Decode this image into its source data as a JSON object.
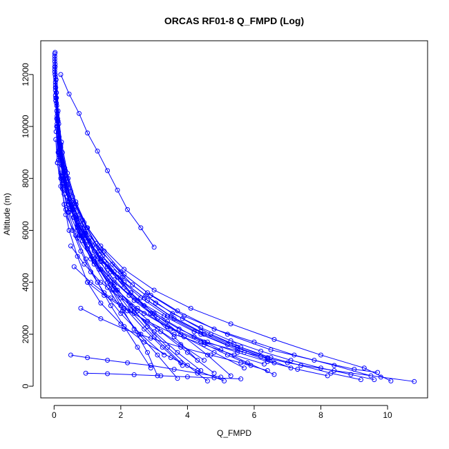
{
  "chart_data": {
    "type": "scatter",
    "title": "ORCAS RF01-8 Q_FMPD (Log)",
    "xlabel": "Q_FMPD",
    "ylabel": "Altitude (m)",
    "xlim": [
      -0.4,
      11.2
    ],
    "ylim": [
      -450,
      13300
    ],
    "xticks": [
      "0",
      "2",
      "4",
      "6",
      "8",
      "10"
    ],
    "yticks": [
      "0",
      "2000",
      "4000",
      "6000",
      "8000",
      "10000",
      "12000"
    ],
    "grid": false,
    "legend": "none",
    "colors": {
      "series": "#0000ff",
      "axes": "#000000"
    },
    "series": [
      {
        "x": [
          0.02,
          0.03,
          0.05,
          0.08,
          0.12,
          0.2,
          0.3,
          0.45,
          0.7,
          1.0,
          1.4,
          2.0,
          2.7,
          3.5,
          4.3,
          5.1
        ],
        "y": [
          12700,
          12000,
          11000,
          10000,
          9000,
          8000,
          7000,
          6000,
          5000,
          4000,
          3200,
          2400,
          1700,
          1100,
          600,
          200
        ]
      },
      {
        "x": [
          0.02,
          0.05,
          0.1,
          0.2,
          0.4,
          0.7,
          1.1,
          1.7,
          2.5,
          3.4,
          4.5,
          5.7,
          7.0,
          8.4,
          9.8,
          10.8
        ],
        "y": [
          12500,
          11500,
          10200,
          8800,
          7300,
          6000,
          4900,
          3900,
          3000,
          2300,
          1700,
          1300,
          900,
          600,
          350,
          180
        ]
      },
      {
        "x": [
          0.02,
          0.04,
          0.08,
          0.15,
          0.3,
          0.5,
          0.8,
          1.2,
          1.7,
          2.3,
          3.0,
          3.8
        ],
        "y": [
          12300,
          11200,
          10000,
          8900,
          7800,
          6800,
          5800,
          4800,
          3900,
          2900,
          1900,
          900
        ]
      },
      {
        "x": [
          0.05,
          0.1,
          0.2,
          0.35,
          0.6,
          0.9,
          1.3,
          1.9,
          2.6,
          3.4,
          4.4,
          5.5,
          6.6
        ],
        "y": [
          11800,
          10500,
          9200,
          8000,
          6900,
          5900,
          5000,
          4200,
          3400,
          2700,
          2000,
          1400,
          900
        ]
      },
      {
        "x": [
          0.2,
          0.45,
          0.75,
          1.0,
          1.3,
          1.6,
          1.9,
          2.2,
          2.6,
          3.0
        ],
        "y": [
          12000,
          11250,
          10500,
          9750,
          9050,
          8300,
          7550,
          6800,
          6100,
          5350
        ]
      },
      {
        "x": [
          0.03,
          0.06,
          0.12,
          0.22,
          0.4,
          0.65,
          1.0,
          1.5,
          2.1,
          2.9,
          3.9,
          5.2,
          6.5,
          7.8,
          9.0,
          9.7
        ],
        "y": [
          12850,
          11800,
          10600,
          9400,
          8200,
          7100,
          6100,
          5200,
          4300,
          3500,
          2700,
          2000,
          1400,
          1000,
          650,
          530
        ]
      },
      {
        "x": [
          0.04,
          0.08,
          0.15,
          0.28,
          0.45,
          0.7,
          1.0,
          1.4,
          1.9,
          2.5,
          3.2,
          4.0,
          4.8
        ],
        "y": [
          11500,
          10300,
          9100,
          8000,
          7000,
          6100,
          5300,
          4500,
          3700,
          2900,
          2100,
          1300,
          500
        ]
      },
      {
        "x": [
          0.1,
          0.2,
          0.35,
          0.6,
          0.95,
          1.4,
          2.0,
          2.7,
          3.5,
          4.4,
          5.4,
          6.4
        ],
        "y": [
          10000,
          8900,
          7800,
          6800,
          5800,
          4900,
          4100,
          3400,
          2700,
          2100,
          1600,
          1100
        ]
      },
      {
        "x": [
          0.02,
          0.05,
          0.1,
          0.18,
          0.3,
          0.5,
          0.8,
          1.2,
          1.6,
          2.0,
          2.4,
          2.8,
          3.1
        ],
        "y": [
          12200,
          11000,
          9900,
          8900,
          7900,
          6900,
          5900,
          4900,
          4000,
          3100,
          2200,
          1300,
          400
        ]
      },
      {
        "x": [
          0.08,
          0.15,
          0.3,
          0.55,
          0.9,
          1.4,
          2.1,
          3.0,
          4.1,
          5.3,
          6.6,
          8.0,
          9.3,
          10.1
        ],
        "y": [
          10800,
          9600,
          8400,
          7300,
          6300,
          5400,
          4500,
          3700,
          3000,
          2400,
          1800,
          1200,
          700,
          200
        ]
      },
      {
        "x": [
          0.03,
          0.07,
          0.14,
          0.25,
          0.42,
          0.66,
          0.98,
          1.35,
          1.8,
          2.3,
          2.9,
          3.6,
          4.3
        ],
        "y": [
          12400,
          11300,
          10100,
          9000,
          8000,
          7000,
          6100,
          5200,
          4400,
          3600,
          2800,
          1900,
          1000
        ]
      },
      {
        "x": [
          0.3,
          0.6,
          1.0,
          1.5,
          2.1,
          2.8,
          3.6,
          4.5,
          5.5,
          6.4
        ],
        "y": [
          7400,
          6500,
          5600,
          4800,
          4000,
          3300,
          2600,
          2000,
          1500,
          1050
        ]
      },
      {
        "x": [
          0.05,
          0.1,
          0.2,
          0.35,
          0.55,
          0.8,
          1.1,
          1.5,
          2.0,
          2.6,
          3.3
        ],
        "y": [
          9500,
          8600,
          7700,
          6800,
          6000,
          5200,
          4400,
          3600,
          2800,
          2000,
          1200
        ]
      },
      {
        "x": [
          0.02,
          0.04,
          0.07,
          0.12,
          0.2,
          0.32,
          0.5,
          0.75,
          1.05,
          1.4,
          1.8,
          2.3,
          2.8,
          3.4,
          4.0,
          4.6
        ],
        "y": [
          12600,
          11900,
          11100,
          10200,
          9300,
          8400,
          7500,
          6600,
          5700,
          4800,
          3900,
          3100,
          2300,
          1500,
          800,
          200
        ]
      },
      {
        "x": [
          0.15,
          0.3,
          0.55,
          0.9,
          1.4,
          2.0,
          2.8,
          3.7,
          4.8,
          6.0,
          7.2,
          8.4,
          9.5
        ],
        "y": [
          9000,
          8000,
          7000,
          6100,
          5200,
          4400,
          3600,
          2900,
          2200,
          1700,
          1200,
          800,
          400
        ]
      },
      {
        "x": [
          0.02,
          0.05,
          0.09,
          0.16,
          0.27,
          0.45,
          0.7,
          1.0,
          1.4,
          1.85,
          2.4,
          3.0,
          3.7,
          4.4
        ],
        "y": [
          12100,
          11100,
          10100,
          9100,
          8100,
          7100,
          6200,
          5300,
          4500,
          3700,
          2900,
          2100,
          1300,
          600
        ]
      },
      {
        "x": [
          0.5,
          0.9,
          1.4,
          2.0,
          2.7,
          3.5,
          4.4,
          5.2,
          5.9
        ],
        "y": [
          5400,
          4700,
          4000,
          3400,
          2800,
          2200,
          1700,
          1200,
          800
        ]
      },
      {
        "x": [
          0.04,
          0.09,
          0.18,
          0.32,
          0.52,
          0.8,
          1.15,
          1.6,
          2.1,
          2.7,
          3.4,
          4.2,
          5.0,
          5.8,
          6.6
        ],
        "y": [
          11600,
          10400,
          9200,
          8100,
          7100,
          6200,
          5400,
          4600,
          3800,
          3100,
          2500,
          1900,
          1400,
          900,
          450
        ]
      },
      {
        "x": [
          0.2,
          0.45,
          0.8,
          1.2,
          1.7,
          2.3,
          3.0,
          3.8,
          4.6,
          5.3
        ],
        "y": [
          8200,
          7100,
          6100,
          5200,
          4400,
          3600,
          2800,
          2000,
          1200,
          400
        ]
      },
      {
        "x": [
          0.03,
          0.06,
          0.11,
          0.2,
          0.34,
          0.55,
          0.85,
          1.25,
          1.75,
          2.35,
          3.05,
          3.85,
          4.7,
          5.6,
          6.5,
          7.4,
          8.3,
          9.2
        ],
        "y": [
          12300,
          11300,
          10300,
          9300,
          8300,
          7300,
          6400,
          5500,
          4700,
          3900,
          3200,
          2600,
          2000,
          1500,
          1100,
          800,
          500,
          250
        ]
      },
      {
        "x": [
          1.0,
          1.5,
          2.1,
          2.8,
          3.6,
          4.5,
          5.4,
          6.3
        ],
        "y": [
          4000,
          3500,
          3000,
          2500,
          2000,
          1600,
          1200,
          850
        ]
      },
      {
        "x": [
          0.06,
          0.13,
          0.25,
          0.42,
          0.65,
          0.95,
          1.3,
          1.7,
          2.1,
          2.5,
          2.9
        ],
        "y": [
          9800,
          8700,
          7700,
          6700,
          5800,
          4900,
          4000,
          3100,
          2300,
          1500,
          700
        ]
      },
      {
        "x": [
          0.35,
          0.7,
          1.2,
          1.8,
          2.5,
          3.3,
          4.2,
          5.2,
          6.2,
          7.1
        ],
        "y": [
          6600,
          5700,
          4800,
          4000,
          3300,
          2700,
          2100,
          1600,
          1150,
          700
        ]
      },
      {
        "x": [
          0.02,
          0.04,
          0.08,
          0.14,
          0.24,
          0.38,
          0.58,
          0.85,
          1.2,
          1.6,
          2.05,
          2.55,
          3.1,
          3.7
        ],
        "y": [
          12800,
          11700,
          10600,
          9500,
          8500,
          7500,
          6500,
          5600,
          4700,
          3800,
          2900,
          2000,
          1200,
          300
        ]
      },
      {
        "x": [
          0.1,
          0.25,
          0.45,
          0.75,
          1.15,
          1.65,
          2.25,
          2.95,
          3.75,
          4.6,
          5.5,
          6.4,
          7.3,
          8.2
        ],
        "y": [
          8600,
          7600,
          6700,
          5800,
          5000,
          4200,
          3500,
          2800,
          2200,
          1700,
          1300,
          950,
          650,
          400
        ]
      },
      {
        "x": [
          0.5,
          1.0,
          1.6,
          2.2,
          2.9,
          3.6,
          4.3,
          5.0
        ],
        "y": [
          1200,
          1100,
          1000,
          900,
          800,
          650,
          500,
          350
        ]
      },
      {
        "x": [
          0.95,
          1.6,
          2.4,
          3.2,
          4.0,
          4.8,
          5.6
        ],
        "y": [
          500,
          480,
          440,
          400,
          360,
          320,
          280
        ]
      },
      {
        "x": [
          0.04,
          0.08,
          0.16,
          0.28,
          0.46,
          0.7,
          1.0,
          1.35,
          1.75,
          2.2,
          2.7,
          3.25,
          3.85
        ],
        "y": [
          11400,
          10300,
          9200,
          8200,
          7200,
          6300,
          5400,
          4500,
          3700,
          2900,
          2200,
          1500,
          800
        ]
      },
      {
        "x": [
          0.25,
          0.55,
          0.95,
          1.45,
          2.05,
          2.75,
          3.55,
          4.4,
          5.3,
          6.2,
          7.1,
          8.0,
          8.9,
          9.6
        ],
        "y": [
          7800,
          6800,
          5900,
          5000,
          4200,
          3500,
          2800,
          2250,
          1750,
          1350,
          1000,
          700,
          450,
          250
        ]
      },
      {
        "x": [
          0.03,
          0.07,
          0.13,
          0.23,
          0.38,
          0.6,
          0.9,
          1.3,
          1.8,
          2.4,
          3.1,
          3.9,
          4.8,
          5.7
        ],
        "y": [
          12000,
          10900,
          9800,
          8700,
          7700,
          6700,
          5800,
          4900,
          4100,
          3300,
          2600,
          1900,
          1300,
          700
        ]
      },
      {
        "x": [
          0.8,
          1.4,
          2.1,
          2.9,
          3.8,
          4.7,
          5.6,
          6.4
        ],
        "y": [
          3000,
          2600,
          2200,
          1850,
          1500,
          1200,
          900,
          600
        ]
      },
      {
        "x": [
          0.6,
          1.1,
          1.7,
          2.4,
          3.1,
          3.8,
          4.5
        ],
        "y": [
          4600,
          4000,
          3400,
          2800,
          2200,
          1600,
          1000
        ]
      }
    ]
  }
}
